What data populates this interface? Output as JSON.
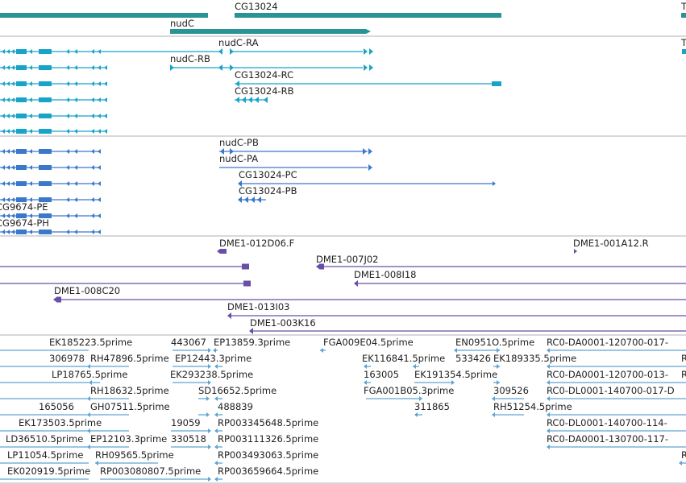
{
  "colors": {
    "gene": "#2a9494",
    "mrna": "#18a4c8",
    "cds": "#3a78cc",
    "clone": "#6a4ea8",
    "est": "#5ea4d4",
    "divider": "#b0b0b8"
  },
  "tracks": {
    "genes": {
      "labels": [
        "CG13024",
        "T",
        "nudC"
      ]
    },
    "transcripts": {
      "labels": [
        "nudC-RA",
        "T",
        "nudC-RB",
        "CG13024-RC",
        "CG13024-RB"
      ]
    },
    "proteins": {
      "labels": [
        "nudC-PB",
        "nudC-PA",
        "CG13024-PC",
        "CG13024-PB",
        "CG9674-PE",
        "CG9674-PH"
      ]
    },
    "clones": {
      "labels": [
        "DME1-012D06.F",
        "DME1-001A12.R",
        "DME1-007J02",
        "DME1-008I18",
        "DME1-008C20",
        "DME1-013I03",
        "DME1-003K16"
      ]
    },
    "ests": {
      "labels": [
        "EK185223.5prime",
        "443067",
        "EP13859.3prime",
        "FGA009E04.5prime",
        "EN0951O.5prime",
        "RC0-DA0001-120700-017-",
        "306978",
        "RH47896.5prime",
        "EP12443.3prime",
        "EK116841.5prime",
        "533426",
        "EK189335.5prime",
        "R",
        "LP18765.5prime",
        "EK293238.5prime",
        "163005",
        "EK191354.5prime",
        "RC0-DA0001-120700-013-",
        "R",
        "RH18632.5prime",
        "SD16652.5prime",
        "FGA001B05.3prime",
        "309526",
        "RC0-DL0001-140700-017-D",
        "165056",
        "GH07511.5prime",
        "488839",
        "311865",
        "RH51254.5prime",
        "EK173503.5prime",
        "19059",
        "RP003345648.5prime",
        "RC0-DL0001-140700-114-",
        "LD36510.5prime",
        "EP12103.3prime",
        "330518",
        "RP003111326.5prime",
        "RC0-DA0001-130700-117-",
        "LP11054.5prime",
        "RH09565.5prime",
        "RP003493063.5prime",
        "R",
        "EK020919.5prime",
        "RP003080807.5prime",
        "RP003659664.5prime"
      ]
    }
  }
}
